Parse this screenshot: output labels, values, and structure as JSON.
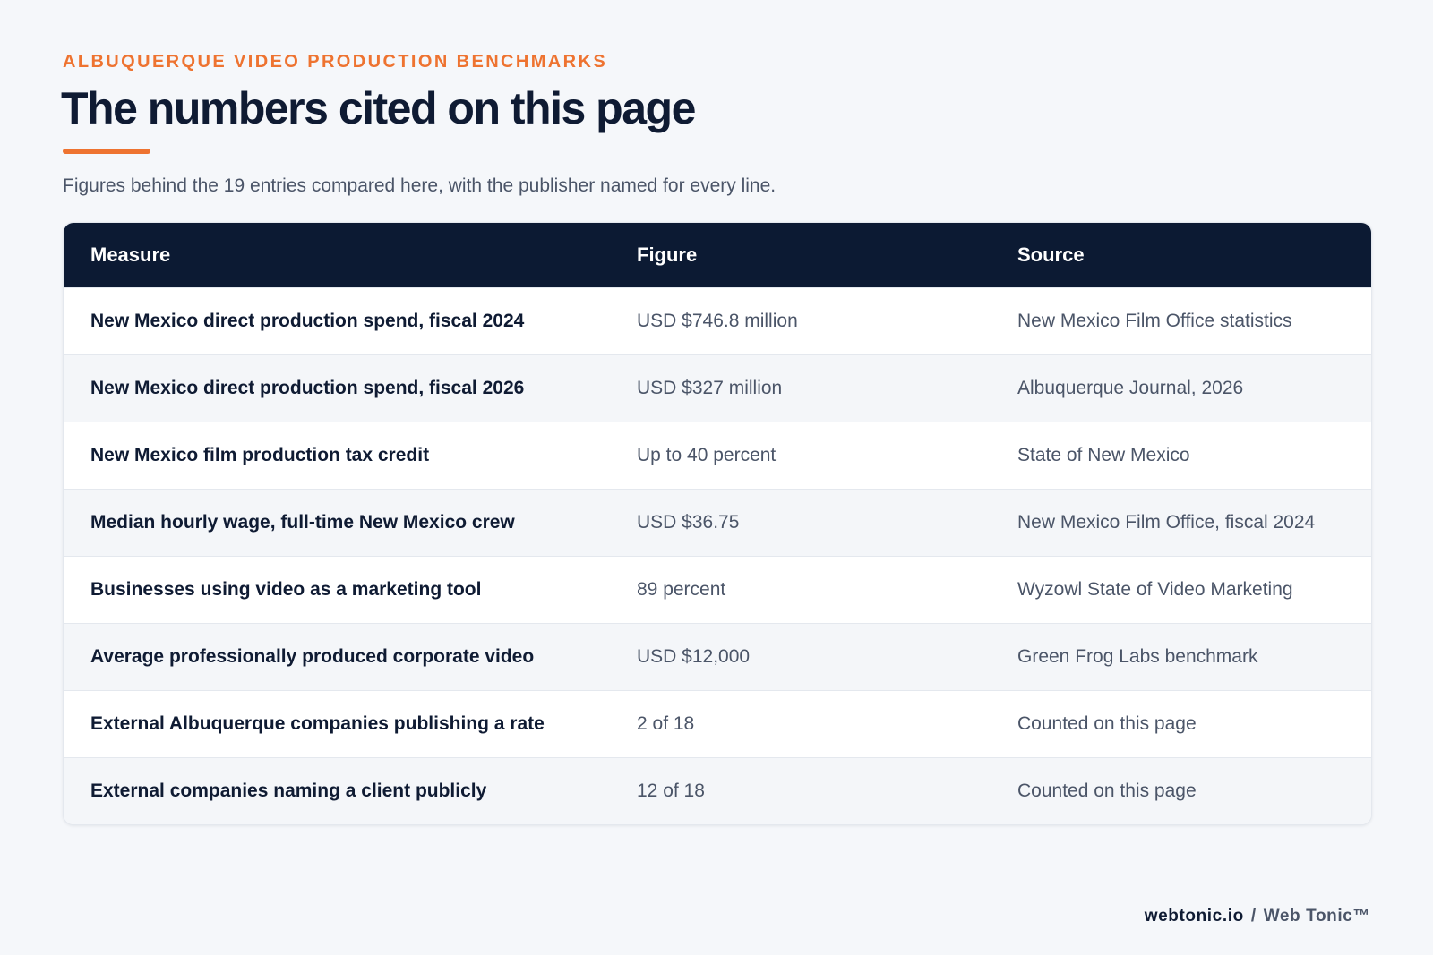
{
  "header": {
    "eyebrow": "ALBUQUERQUE VIDEO PRODUCTION BENCHMARKS",
    "title": "The numbers cited on this page",
    "subtitle": "Figures behind the 19 entries compared here, with the publisher named for every line."
  },
  "table": {
    "columns": [
      "Measure",
      "Figure",
      "Source"
    ],
    "rows": [
      [
        "New Mexico direct production spend, fiscal 2024",
        "USD $746.8 million",
        "New Mexico Film Office statistics"
      ],
      [
        "New Mexico direct production spend, fiscal 2026",
        "USD $327 million",
        "Albuquerque Journal, 2026"
      ],
      [
        "New Mexico film production tax credit",
        "Up to 40 percent",
        "State of New Mexico"
      ],
      [
        "Median hourly wage, full-time New Mexico crew",
        "USD $36.75",
        "New Mexico Film Office, fiscal 2024"
      ],
      [
        "Businesses using video as a marketing tool",
        "89 percent",
        "Wyzowl State of Video Marketing"
      ],
      [
        "Average professionally produced corporate video",
        "USD $12,000",
        "Green Frog Labs benchmark"
      ],
      [
        "External Albuquerque companies publishing a rate",
        "2 of 18",
        "Counted on this page"
      ],
      [
        "External companies naming a client publicly",
        "12 of 18",
        "Counted on this page"
      ]
    ]
  },
  "footer": {
    "domain": "webtonic.io",
    "separator": "/",
    "brand": "Web Tonic™"
  }
}
